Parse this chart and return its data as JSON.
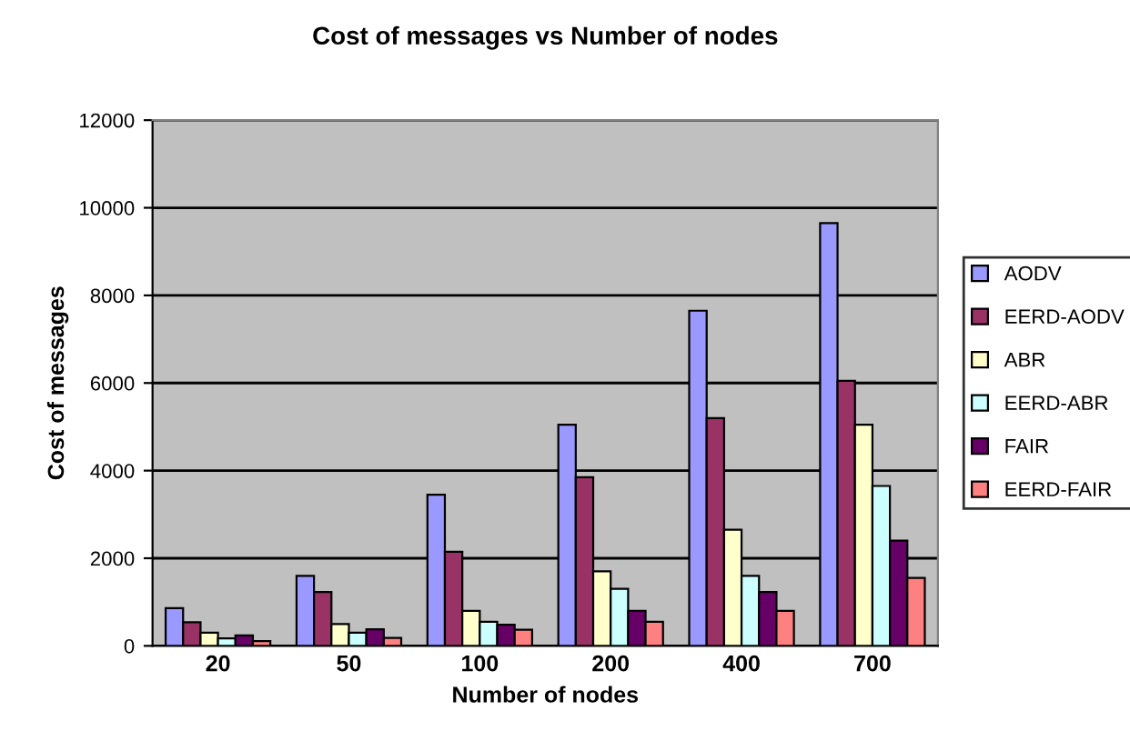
{
  "chart_data": {
    "type": "bar",
    "title": "Cost of messages vs Number of nodes",
    "xlabel": "Number of nodes",
    "ylabel": "Cost of messages",
    "categories": [
      "20",
      "50",
      "100",
      "200",
      "400",
      "700"
    ],
    "series": [
      {
        "name": "AODV",
        "color": "#9999ff",
        "values": [
          860,
          1600,
          3450,
          5050,
          7650,
          9650
        ]
      },
      {
        "name": "EERD-AODV",
        "color": "#993366",
        "values": [
          540,
          1230,
          2150,
          3850,
          5200,
          6050
        ]
      },
      {
        "name": "ABR",
        "color": "#ffffcc",
        "values": [
          300,
          500,
          800,
          1700,
          2650,
          5050
        ]
      },
      {
        "name": "EERD-ABR",
        "color": "#ccffff",
        "values": [
          170,
          300,
          550,
          1300,
          1600,
          3650
        ]
      },
      {
        "name": "FAIR",
        "color": "#660066",
        "values": [
          240,
          380,
          480,
          800,
          1230,
          2400
        ]
      },
      {
        "name": "EERD-FAIR",
        "color": "#ff8080",
        "values": [
          110,
          180,
          370,
          550,
          800,
          1550
        ]
      }
    ],
    "ylim": [
      0,
      12000
    ],
    "yticks": [
      0,
      2000,
      4000,
      6000,
      8000,
      10000,
      12000
    ],
    "grid": "y",
    "legend": "right"
  }
}
